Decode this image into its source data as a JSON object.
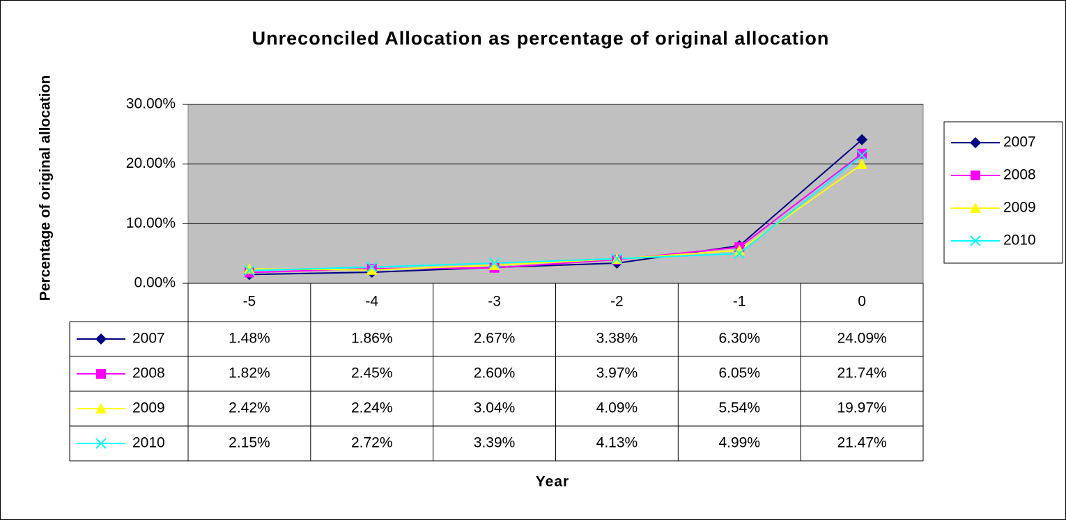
{
  "chart_data": {
    "type": "line",
    "title": "Unreconciled Allocation as percentage of original allocation",
    "x_label": "Year",
    "y_label": "Percentage of original allocation",
    "categories": [
      "-5",
      "-4",
      "-3",
      "-2",
      "-1",
      "0"
    ],
    "series": [
      {
        "name": "2007",
        "color": "#000080",
        "marker": "diamond",
        "values": [
          1.48,
          1.86,
          2.67,
          3.38,
          6.3,
          24.09
        ],
        "value_labels": [
          "1.48%",
          "1.86%",
          "2.67%",
          "3.38%",
          "6.30%",
          "24.09%"
        ]
      },
      {
        "name": "2008",
        "color": "#ff00ff",
        "marker": "square",
        "values": [
          1.82,
          2.45,
          2.6,
          3.97,
          6.05,
          21.74
        ],
        "value_labels": [
          "1.82%",
          "2.45%",
          "2.60%",
          "3.97%",
          "6.05%",
          "21.74%"
        ]
      },
      {
        "name": "2009",
        "color": "#ffff00",
        "marker": "triangle",
        "values": [
          2.42,
          2.24,
          3.04,
          4.09,
          5.54,
          19.97
        ],
        "value_labels": [
          "2.42%",
          "2.24%",
          "3.04%",
          "4.09%",
          "5.54%",
          "19.97%"
        ]
      },
      {
        "name": "2010",
        "color": "#00ffff",
        "marker": "x",
        "values": [
          2.15,
          2.72,
          3.39,
          4.13,
          4.99,
          21.47
        ],
        "value_labels": [
          "2.15%",
          "2.72%",
          "3.39%",
          "4.13%",
          "4.99%",
          "21.47%"
        ]
      }
    ],
    "ylim": [
      0,
      30
    ],
    "yticks": [
      {
        "value": 0,
        "label": "0.00%"
      },
      {
        "value": 10,
        "label": "10.00%"
      },
      {
        "value": 20,
        "label": "20.00%"
      },
      {
        "value": 30,
        "label": "30.00%"
      }
    ],
    "grid": true,
    "legend": "right",
    "data_table": true
  }
}
